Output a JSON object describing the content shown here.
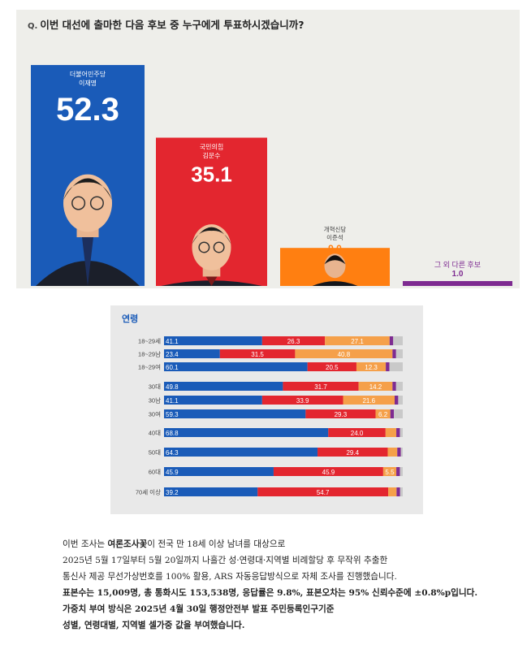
{
  "question": {
    "mark": "Q.",
    "text": "이번 대선에 출마한 다음 후보 중 누구에게 투표하시겠습니까?"
  },
  "chart_data": [
    {
      "type": "bar",
      "title": "이번 대선에 출마한 다음 후보 중 누구에게 투표하시겠습니까?",
      "ylim": [
        0,
        60
      ],
      "categories": [
        {
          "party": "더불어민주당",
          "name": "이재명",
          "value": 52.3,
          "color": "#1a5bb8"
        },
        {
          "party": "국민의힘",
          "name": "김문수",
          "value": 35.1,
          "color": "#e3262f"
        },
        {
          "party": "개혁신당",
          "name": "이준석",
          "value": 9.0,
          "color": "#ff7f11"
        },
        {
          "party": "",
          "name": "그 외 다른 후보",
          "value": 1.0,
          "color": "#7e2b91"
        }
      ]
    },
    {
      "type": "bar",
      "stacked": true,
      "orientation": "horizontal",
      "title": "연령",
      "xlim": [
        0,
        100
      ],
      "colors": {
        "lee": "#1a5bb8",
        "kim": "#e3262f",
        "lee_js": "#f5a04a",
        "other": "#7e2b91",
        "undecided": "#c9c9c9"
      },
      "rows": [
        {
          "label": "18~29세",
          "values": [
            41.1,
            26.3,
            27.1
          ]
        },
        {
          "label": "18~29남",
          "values": [
            23.4,
            31.5,
            40.8
          ]
        },
        {
          "label": "18~29여",
          "values": [
            60.1,
            20.5,
            12.3
          ]
        },
        {
          "label": "30대",
          "values": [
            49.8,
            31.7,
            14.2
          ]
        },
        {
          "label": "30남",
          "values": [
            41.1,
            33.9,
            21.6
          ]
        },
        {
          "label": "30여",
          "values": [
            59.3,
            29.3,
            6.2
          ]
        },
        {
          "label": "40대",
          "values": [
            68.8,
            24.0,
            4.5
          ]
        },
        {
          "label": "50대",
          "values": [
            64.3,
            29.4,
            4.0
          ]
        },
        {
          "label": "60대",
          "values": [
            45.9,
            45.9,
            5.5
          ]
        },
        {
          "label": "70세 이상",
          "values": [
            39.2,
            54.7,
            3.5
          ]
        }
      ]
    }
  ],
  "notes": [
    {
      "parts": [
        {
          "t": "이번 조사는 ",
          "b": false
        },
        {
          "t": "여론조사꽃",
          "b": true
        },
        {
          "t": "이 전국 만 18세 이상 남녀를 대상으로",
          "b": false
        }
      ]
    },
    {
      "parts": [
        {
          "t": "2025년 5월 17일부터 5월 20일까지 나흘간 성·연령대·지역별 비례할당 후 무작위 추출한",
          "b": false
        }
      ]
    },
    {
      "parts": [
        {
          "t": "통신사 제공 무선가상번호를 100% 활용, ARS 자동응답방식으로 자체 조사를 진행했습니다.",
          "b": false
        }
      ]
    },
    {
      "parts": [
        {
          "t": "표본수는 15,009명, 총 통화시도 153,538명, 응답률은 9.8%, 표본오차는 95% 신뢰수준에 ±0.8%p입니다.",
          "b": true
        }
      ]
    },
    {
      "parts": [
        {
          "t": "가중치 부여 방식은 2025년 4월 30일 행정안전부 발표 주민등록인구기준",
          "b": true
        }
      ]
    },
    {
      "parts": [
        {
          "t": "성별, 연령대별, 지역별 셀가중 값을 부여했습니다.",
          "b": true
        }
      ]
    }
  ]
}
